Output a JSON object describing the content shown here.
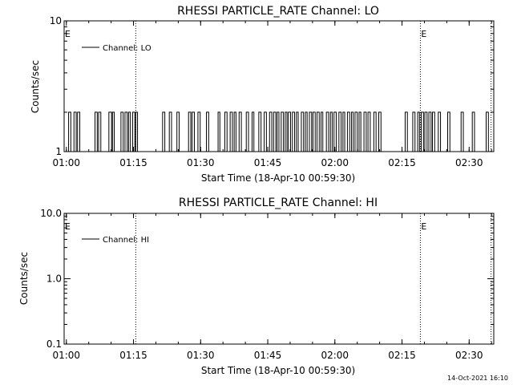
{
  "footer": {
    "timestamp": "14-Oct-2021 16:10"
  },
  "chart_data": [
    {
      "type": "line",
      "title": "RHESSI PARTICLE_RATE Channel: LO",
      "xlabel": "Start Time (18-Apr-10 00:59:30)",
      "ylabel": "Counts/sec",
      "xlim_minutes": [
        0,
        96
      ],
      "yscale": "log",
      "ylim": [
        1,
        10
      ],
      "y_ticks": [
        1,
        10
      ],
      "y_tick_labels": [
        "1",
        "10"
      ],
      "x_ticks_minutes": [
        0.5,
        15.5,
        30.5,
        45.5,
        60.5,
        75.5,
        90.5
      ],
      "x_tick_labels": [
        "01:00",
        "01:15",
        "01:30",
        "01:45",
        "02:00",
        "02:15",
        "02:30"
      ],
      "legend": "Channel: LO",
      "legend_position": "top-left",
      "markers": [
        {
          "label": "E",
          "minute": 0
        },
        {
          "label": "E",
          "minute": 79.6
        }
      ],
      "vertical_dotted_lines_minutes": [
        16.0,
        79.6,
        95.4
      ],
      "series": [
        {
          "name": "Channel: LO",
          "segments": [
            {
              "start": 1.0,
              "end": 1.5,
              "value": 2
            },
            {
              "start": 2.2,
              "end": 2.7,
              "value": 2
            },
            {
              "start": 3.0,
              "end": 3.5,
              "value": 2
            },
            {
              "start": 6.9,
              "end": 7.4,
              "value": 2
            },
            {
              "start": 7.7,
              "end": 8.2,
              "value": 2
            },
            {
              "start": 10.0,
              "end": 10.6,
              "value": 2
            },
            {
              "start": 10.8,
              "end": 11.2,
              "value": 2
            },
            {
              "start": 12.7,
              "end": 13.2,
              "value": 2
            },
            {
              "start": 13.6,
              "end": 14.1,
              "value": 2
            },
            {
              "start": 14.4,
              "end": 14.8,
              "value": 2
            },
            {
              "start": 15.3,
              "end": 15.8,
              "value": 2
            },
            {
              "start": 16.0,
              "end": 16.4,
              "value": 2
            },
            {
              "start": 22.0,
              "end": 22.5,
              "value": 2
            },
            {
              "start": 23.5,
              "end": 24.0,
              "value": 2
            },
            {
              "start": 25.2,
              "end": 25.7,
              "value": 2
            },
            {
              "start": 27.8,
              "end": 28.3,
              "value": 2
            },
            {
              "start": 28.6,
              "end": 29.1,
              "value": 2
            },
            {
              "start": 29.9,
              "end": 30.4,
              "value": 2
            },
            {
              "start": 31.8,
              "end": 32.3,
              "value": 2
            },
            {
              "start": 34.4,
              "end": 34.8,
              "value": 2
            },
            {
              "start": 35.9,
              "end": 36.4,
              "value": 2
            },
            {
              "start": 37.1,
              "end": 37.6,
              "value": 2
            },
            {
              "start": 38.0,
              "end": 38.4,
              "value": 2
            },
            {
              "start": 39.1,
              "end": 39.6,
              "value": 2
            },
            {
              "start": 40.7,
              "end": 41.2,
              "value": 2
            },
            {
              "start": 42.0,
              "end": 42.4,
              "value": 2
            },
            {
              "start": 43.5,
              "end": 44.0,
              "value": 2
            },
            {
              "start": 44.7,
              "end": 45.2,
              "value": 2
            },
            {
              "start": 45.9,
              "end": 46.4,
              "value": 2
            },
            {
              "start": 46.8,
              "end": 47.3,
              "value": 2
            },
            {
              "start": 47.6,
              "end": 48.0,
              "value": 2
            },
            {
              "start": 48.5,
              "end": 49.0,
              "value": 2
            },
            {
              "start": 49.4,
              "end": 49.8,
              "value": 2
            },
            {
              "start": 50.1,
              "end": 50.6,
              "value": 2
            },
            {
              "start": 51.0,
              "end": 51.5,
              "value": 2
            },
            {
              "start": 51.9,
              "end": 52.3,
              "value": 2
            },
            {
              "start": 53.0,
              "end": 53.5,
              "value": 2
            },
            {
              "start": 53.9,
              "end": 54.3,
              "value": 2
            },
            {
              "start": 54.8,
              "end": 55.3,
              "value": 2
            },
            {
              "start": 55.6,
              "end": 56.1,
              "value": 2
            },
            {
              "start": 56.5,
              "end": 57.0,
              "value": 2
            },
            {
              "start": 57.4,
              "end": 57.8,
              "value": 2
            },
            {
              "start": 58.6,
              "end": 59.1,
              "value": 2
            },
            {
              "start": 59.5,
              "end": 59.9,
              "value": 2
            },
            {
              "start": 60.3,
              "end": 60.8,
              "value": 2
            },
            {
              "start": 61.4,
              "end": 61.9,
              "value": 2
            },
            {
              "start": 62.3,
              "end": 62.7,
              "value": 2
            },
            {
              "start": 63.3,
              "end": 63.8,
              "value": 2
            },
            {
              "start": 64.2,
              "end": 64.6,
              "value": 2
            },
            {
              "start": 65.0,
              "end": 65.5,
              "value": 2
            },
            {
              "start": 65.9,
              "end": 66.3,
              "value": 2
            },
            {
              "start": 67.0,
              "end": 67.5,
              "value": 2
            },
            {
              "start": 67.9,
              "end": 68.4,
              "value": 2
            },
            {
              "start": 69.2,
              "end": 69.7,
              "value": 2
            },
            {
              "start": 70.3,
              "end": 70.8,
              "value": 2
            },
            {
              "start": 76.2,
              "end": 76.7,
              "value": 2
            },
            {
              "start": 77.9,
              "end": 78.4,
              "value": 2
            },
            {
              "start": 79.0,
              "end": 79.4,
              "value": 2
            },
            {
              "start": 79.8,
              "end": 80.3,
              "value": 2
            },
            {
              "start": 80.6,
              "end": 81.1,
              "value": 2
            },
            {
              "start": 81.5,
              "end": 82.0,
              "value": 2
            },
            {
              "start": 82.3,
              "end": 82.8,
              "value": 2
            },
            {
              "start": 83.6,
              "end": 84.1,
              "value": 2
            },
            {
              "start": 85.7,
              "end": 86.2,
              "value": 2
            },
            {
              "start": 88.7,
              "end": 89.2,
              "value": 2
            },
            {
              "start": 91.2,
              "end": 91.7,
              "value": 2
            },
            {
              "start": 94.3,
              "end": 94.8,
              "value": 2
            }
          ]
        }
      ]
    },
    {
      "type": "line",
      "title": "RHESSI PARTICLE_RATE Channel: HI",
      "xlabel": "Start Time (18-Apr-10 00:59:30)",
      "ylabel": "Counts/sec",
      "xlim_minutes": [
        0,
        96
      ],
      "yscale": "log",
      "ylim": [
        0.1,
        10
      ],
      "y_ticks": [
        0.1,
        1.0,
        10.0
      ],
      "y_tick_labels": [
        "0.1",
        "1.0",
        "10.0"
      ],
      "x_ticks_minutes": [
        0.5,
        15.5,
        30.5,
        45.5,
        60.5,
        75.5,
        90.5
      ],
      "x_tick_labels": [
        "01:00",
        "01:15",
        "01:30",
        "01:45",
        "02:00",
        "02:15",
        "02:30"
      ],
      "legend": "Channel: HI",
      "legend_position": "top-left",
      "markers": [
        {
          "label": "E",
          "minute": 0
        },
        {
          "label": "E",
          "minute": 79.6
        }
      ],
      "vertical_dotted_lines_minutes": [
        16.0,
        79.6,
        95.4
      ],
      "series": [
        {
          "name": "Channel: HI",
          "segments": []
        }
      ]
    }
  ]
}
